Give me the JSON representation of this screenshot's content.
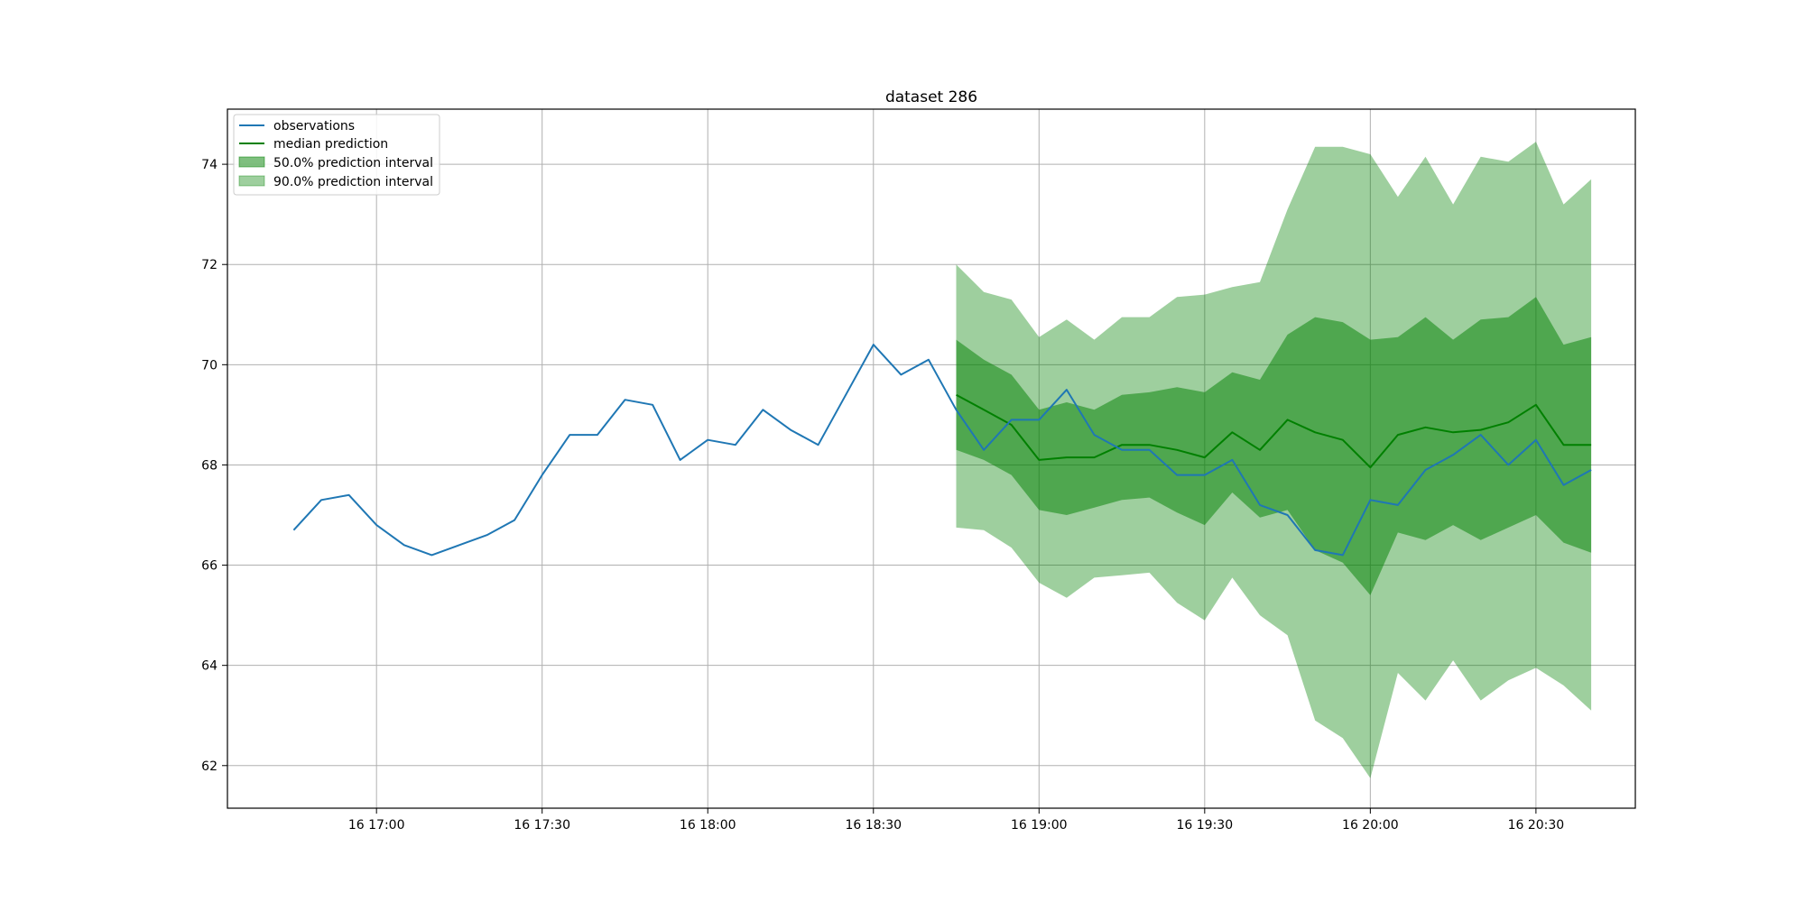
{
  "chart_data": {
    "type": "line",
    "title": "dataset 286",
    "xlabel": "",
    "ylabel": "",
    "grid": true,
    "legend_position": "top-left",
    "x_ticks": [
      "16 17:00",
      "16 17:30",
      "16 18:00",
      "16 18:30",
      "16 19:00",
      "16 19:30",
      "16 20:00",
      "16 20:30"
    ],
    "y_ticks": [
      62,
      64,
      66,
      68,
      70,
      72,
      74
    ],
    "x_range": [
      "16 16:33",
      "16 20:48"
    ],
    "ylim": [
      61.15,
      75.1
    ],
    "legend": [
      "observations",
      "median prediction",
      "50.0% prediction interval",
      "90.0% prediction interval"
    ],
    "colors": {
      "observations": "#1f77b4",
      "median": "#008000",
      "interval50": "#008000",
      "interval90": "#008000"
    },
    "series": [
      {
        "name": "observations",
        "x": [
          "16 16:45",
          "16 16:50",
          "16 16:55",
          "16 17:00",
          "16 17:05",
          "16 17:10",
          "16 17:15",
          "16 17:20",
          "16 17:25",
          "16 17:30",
          "16 17:35",
          "16 17:40",
          "16 17:45",
          "16 17:50",
          "16 17:55",
          "16 18:00",
          "16 18:05",
          "16 18:10",
          "16 18:15",
          "16 18:20",
          "16 18:25",
          "16 18:30",
          "16 18:35",
          "16 18:40",
          "16 18:45",
          "16 18:50",
          "16 18:55",
          "16 19:00",
          "16 19:05",
          "16 19:10",
          "16 19:15",
          "16 19:20",
          "16 19:25",
          "16 19:30",
          "16 19:35",
          "16 19:40",
          "16 19:45",
          "16 19:50",
          "16 19:55",
          "16 20:00",
          "16 20:05",
          "16 20:10",
          "16 20:15",
          "16 20:20",
          "16 20:25",
          "16 20:30",
          "16 20:35",
          "16 20:40"
        ],
        "values": [
          66.7,
          67.3,
          67.4,
          66.8,
          66.4,
          66.2,
          66.4,
          66.6,
          66.9,
          67.8,
          68.6,
          68.6,
          69.3,
          69.2,
          68.1,
          68.5,
          68.4,
          69.1,
          68.7,
          68.4,
          69.4,
          70.4,
          69.8,
          70.1,
          69.1,
          68.3,
          68.9,
          68.9,
          69.5,
          68.6,
          68.3,
          68.3,
          67.8,
          67.8,
          68.1,
          67.2,
          67.0,
          66.3,
          66.2,
          67.3,
          67.2,
          67.9,
          68.2,
          68.6,
          68.0,
          68.5,
          67.6,
          67.9
        ]
      },
      {
        "name": "median prediction",
        "x": [
          "16 18:45",
          "16 18:50",
          "16 18:55",
          "16 19:00",
          "16 19:05",
          "16 19:10",
          "16 19:15",
          "16 19:20",
          "16 19:25",
          "16 19:30",
          "16 19:35",
          "16 19:40",
          "16 19:45",
          "16 19:50",
          "16 19:55",
          "16 20:00",
          "16 20:05",
          "16 20:10",
          "16 20:15",
          "16 20:20",
          "16 20:25",
          "16 20:30",
          "16 20:35",
          "16 20:40"
        ],
        "values": [
          69.4,
          69.1,
          68.8,
          68.1,
          68.15,
          68.15,
          68.4,
          68.4,
          68.3,
          68.15,
          68.65,
          68.3,
          68.9,
          68.65,
          68.5,
          67.95,
          68.6,
          68.75,
          68.65,
          68.7,
          68.85,
          69.2,
          68.4,
          68.4
        ]
      },
      {
        "name": "50.0% prediction interval",
        "x": [
          "16 18:45",
          "16 18:50",
          "16 18:55",
          "16 19:00",
          "16 19:05",
          "16 19:10",
          "16 19:15",
          "16 19:20",
          "16 19:25",
          "16 19:30",
          "16 19:35",
          "16 19:40",
          "16 19:45",
          "16 19:50",
          "16 19:55",
          "16 20:00",
          "16 20:05",
          "16 20:10",
          "16 20:15",
          "16 20:20",
          "16 20:25",
          "16 20:30",
          "16 20:35",
          "16 20:40"
        ],
        "upper": [
          70.5,
          70.1,
          69.8,
          69.1,
          69.25,
          69.1,
          69.4,
          69.45,
          69.55,
          69.45,
          69.85,
          69.7,
          70.6,
          70.95,
          70.85,
          70.5,
          70.55,
          70.95,
          70.5,
          70.9,
          70.95,
          71.35,
          70.4,
          70.55
        ],
        "lower": [
          68.3,
          68.1,
          67.8,
          67.1,
          67.0,
          67.15,
          67.3,
          67.35,
          67.05,
          66.8,
          67.45,
          66.95,
          67.1,
          66.3,
          66.05,
          65.4,
          66.65,
          66.5,
          66.8,
          66.5,
          66.75,
          67.0,
          66.45,
          66.25
        ]
      },
      {
        "name": "90.0% prediction interval",
        "x": [
          "16 18:45",
          "16 18:50",
          "16 18:55",
          "16 19:00",
          "16 19:05",
          "16 19:10",
          "16 19:15",
          "16 19:20",
          "16 19:25",
          "16 19:30",
          "16 19:35",
          "16 19:40",
          "16 19:45",
          "16 19:50",
          "16 19:55",
          "16 20:00",
          "16 20:05",
          "16 20:10",
          "16 20:15",
          "16 20:20",
          "16 20:25",
          "16 20:30",
          "16 20:35",
          "16 20:40"
        ],
        "upper": [
          72.0,
          71.45,
          71.3,
          70.55,
          70.9,
          70.5,
          70.95,
          70.95,
          71.35,
          71.4,
          71.55,
          71.65,
          73.1,
          74.35,
          74.35,
          74.2,
          73.35,
          74.15,
          73.2,
          74.15,
          74.05,
          74.45,
          73.2,
          73.7
        ],
        "lower": [
          66.75,
          66.7,
          66.35,
          65.65,
          65.35,
          65.75,
          65.8,
          65.85,
          65.25,
          64.9,
          65.75,
          65.0,
          64.6,
          62.9,
          62.55,
          61.75,
          63.85,
          63.3,
          64.1,
          63.3,
          63.7,
          63.95,
          63.6,
          63.1
        ]
      }
    ]
  }
}
